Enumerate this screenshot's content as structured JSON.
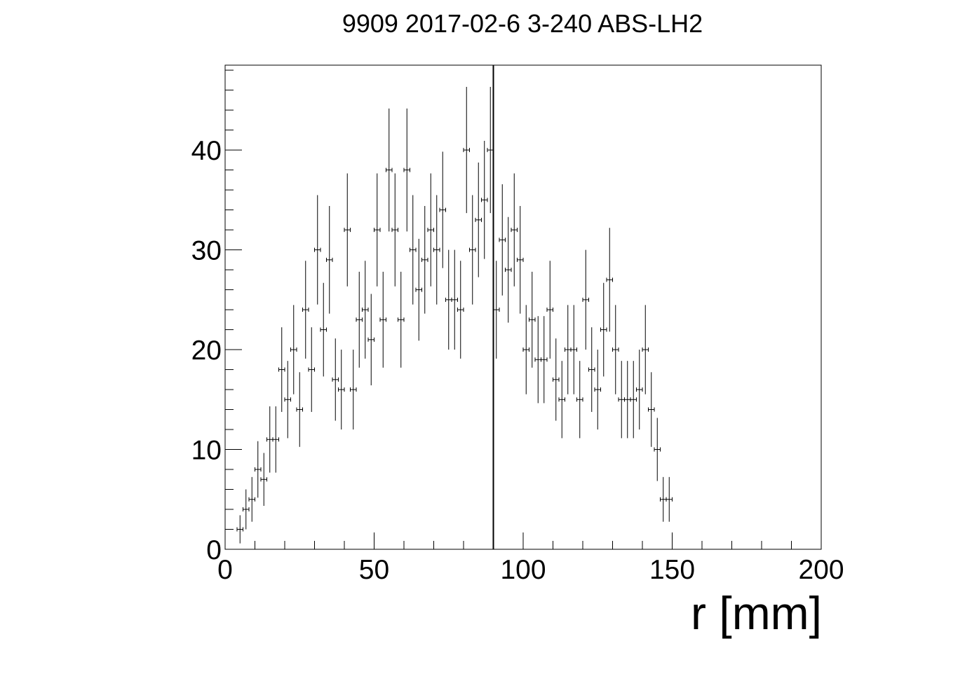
{
  "chart_data": {
    "type": "scatter",
    "title": "9909 2017-02-6 3-240 ABS-LH2",
    "xlabel": "r [mm]",
    "ylabel": "",
    "xlim": [
      0,
      200
    ],
    "ylim": [
      0,
      48.5
    ],
    "x_ticks": [
      0,
      50,
      100,
      150,
      200
    ],
    "y_ticks": [
      0,
      10,
      20,
      30,
      40
    ],
    "grid": false,
    "legend": "none",
    "vertical_line_x": 90,
    "bin_width": 2,
    "series": [
      {
        "x": [
          5,
          7,
          9,
          11,
          13,
          15,
          17,
          19,
          21,
          23,
          25,
          27,
          29,
          31,
          33,
          35,
          37,
          39,
          41,
          43,
          45,
          47,
          49,
          51,
          53,
          55,
          57,
          59,
          61,
          63,
          65,
          67,
          69,
          71,
          73,
          75,
          77,
          79,
          81,
          83,
          85,
          87,
          89,
          91,
          93,
          95,
          97,
          99,
          101,
          103,
          105,
          107,
          109,
          111,
          113,
          115,
          117,
          119,
          121,
          123,
          125,
          127,
          129,
          131,
          133,
          135,
          137,
          139,
          141,
          143,
          145,
          147,
          149
        ],
        "y": [
          2,
          4,
          5,
          8,
          7,
          11,
          11,
          18,
          15,
          20,
          14,
          24,
          18,
          30,
          22,
          29,
          17,
          16,
          32,
          16,
          23,
          24,
          21,
          32,
          23,
          38,
          32,
          23,
          38,
          30,
          26,
          29,
          32,
          30,
          34,
          25,
          25,
          24,
          40,
          30,
          33,
          35,
          40,
          24,
          31,
          28,
          32,
          29,
          20,
          23,
          19,
          19,
          24,
          17,
          15,
          20,
          20,
          15,
          25,
          18,
          16,
          22,
          27,
          20,
          15,
          15,
          15,
          16,
          20,
          14,
          10,
          5,
          5
        ],
        "yerr": [
          1.41,
          2,
          2.24,
          2.83,
          2.65,
          3.32,
          3.32,
          4.24,
          3.87,
          4.47,
          3.74,
          4.9,
          4.24,
          5.48,
          4.69,
          5.39,
          4.12,
          4,
          5.66,
          4,
          4.8,
          4.9,
          4.58,
          5.66,
          4.8,
          6.16,
          5.66,
          4.8,
          6.16,
          5.48,
          5.1,
          5.39,
          5.66,
          5.48,
          5.83,
          5,
          5,
          4.9,
          6.32,
          5.48,
          5.74,
          5.92,
          6.32,
          4.9,
          5.57,
          5.29,
          5.66,
          5.39,
          4.47,
          4.8,
          4.36,
          4.36,
          4.9,
          4.12,
          3.87,
          4.47,
          4.47,
          3.87,
          5,
          4.24,
          4,
          4.69,
          5.2,
          4.47,
          3.87,
          3.87,
          3.87,
          4,
          4.47,
          3.74,
          3.16,
          2.24,
          2.24
        ]
      }
    ]
  }
}
